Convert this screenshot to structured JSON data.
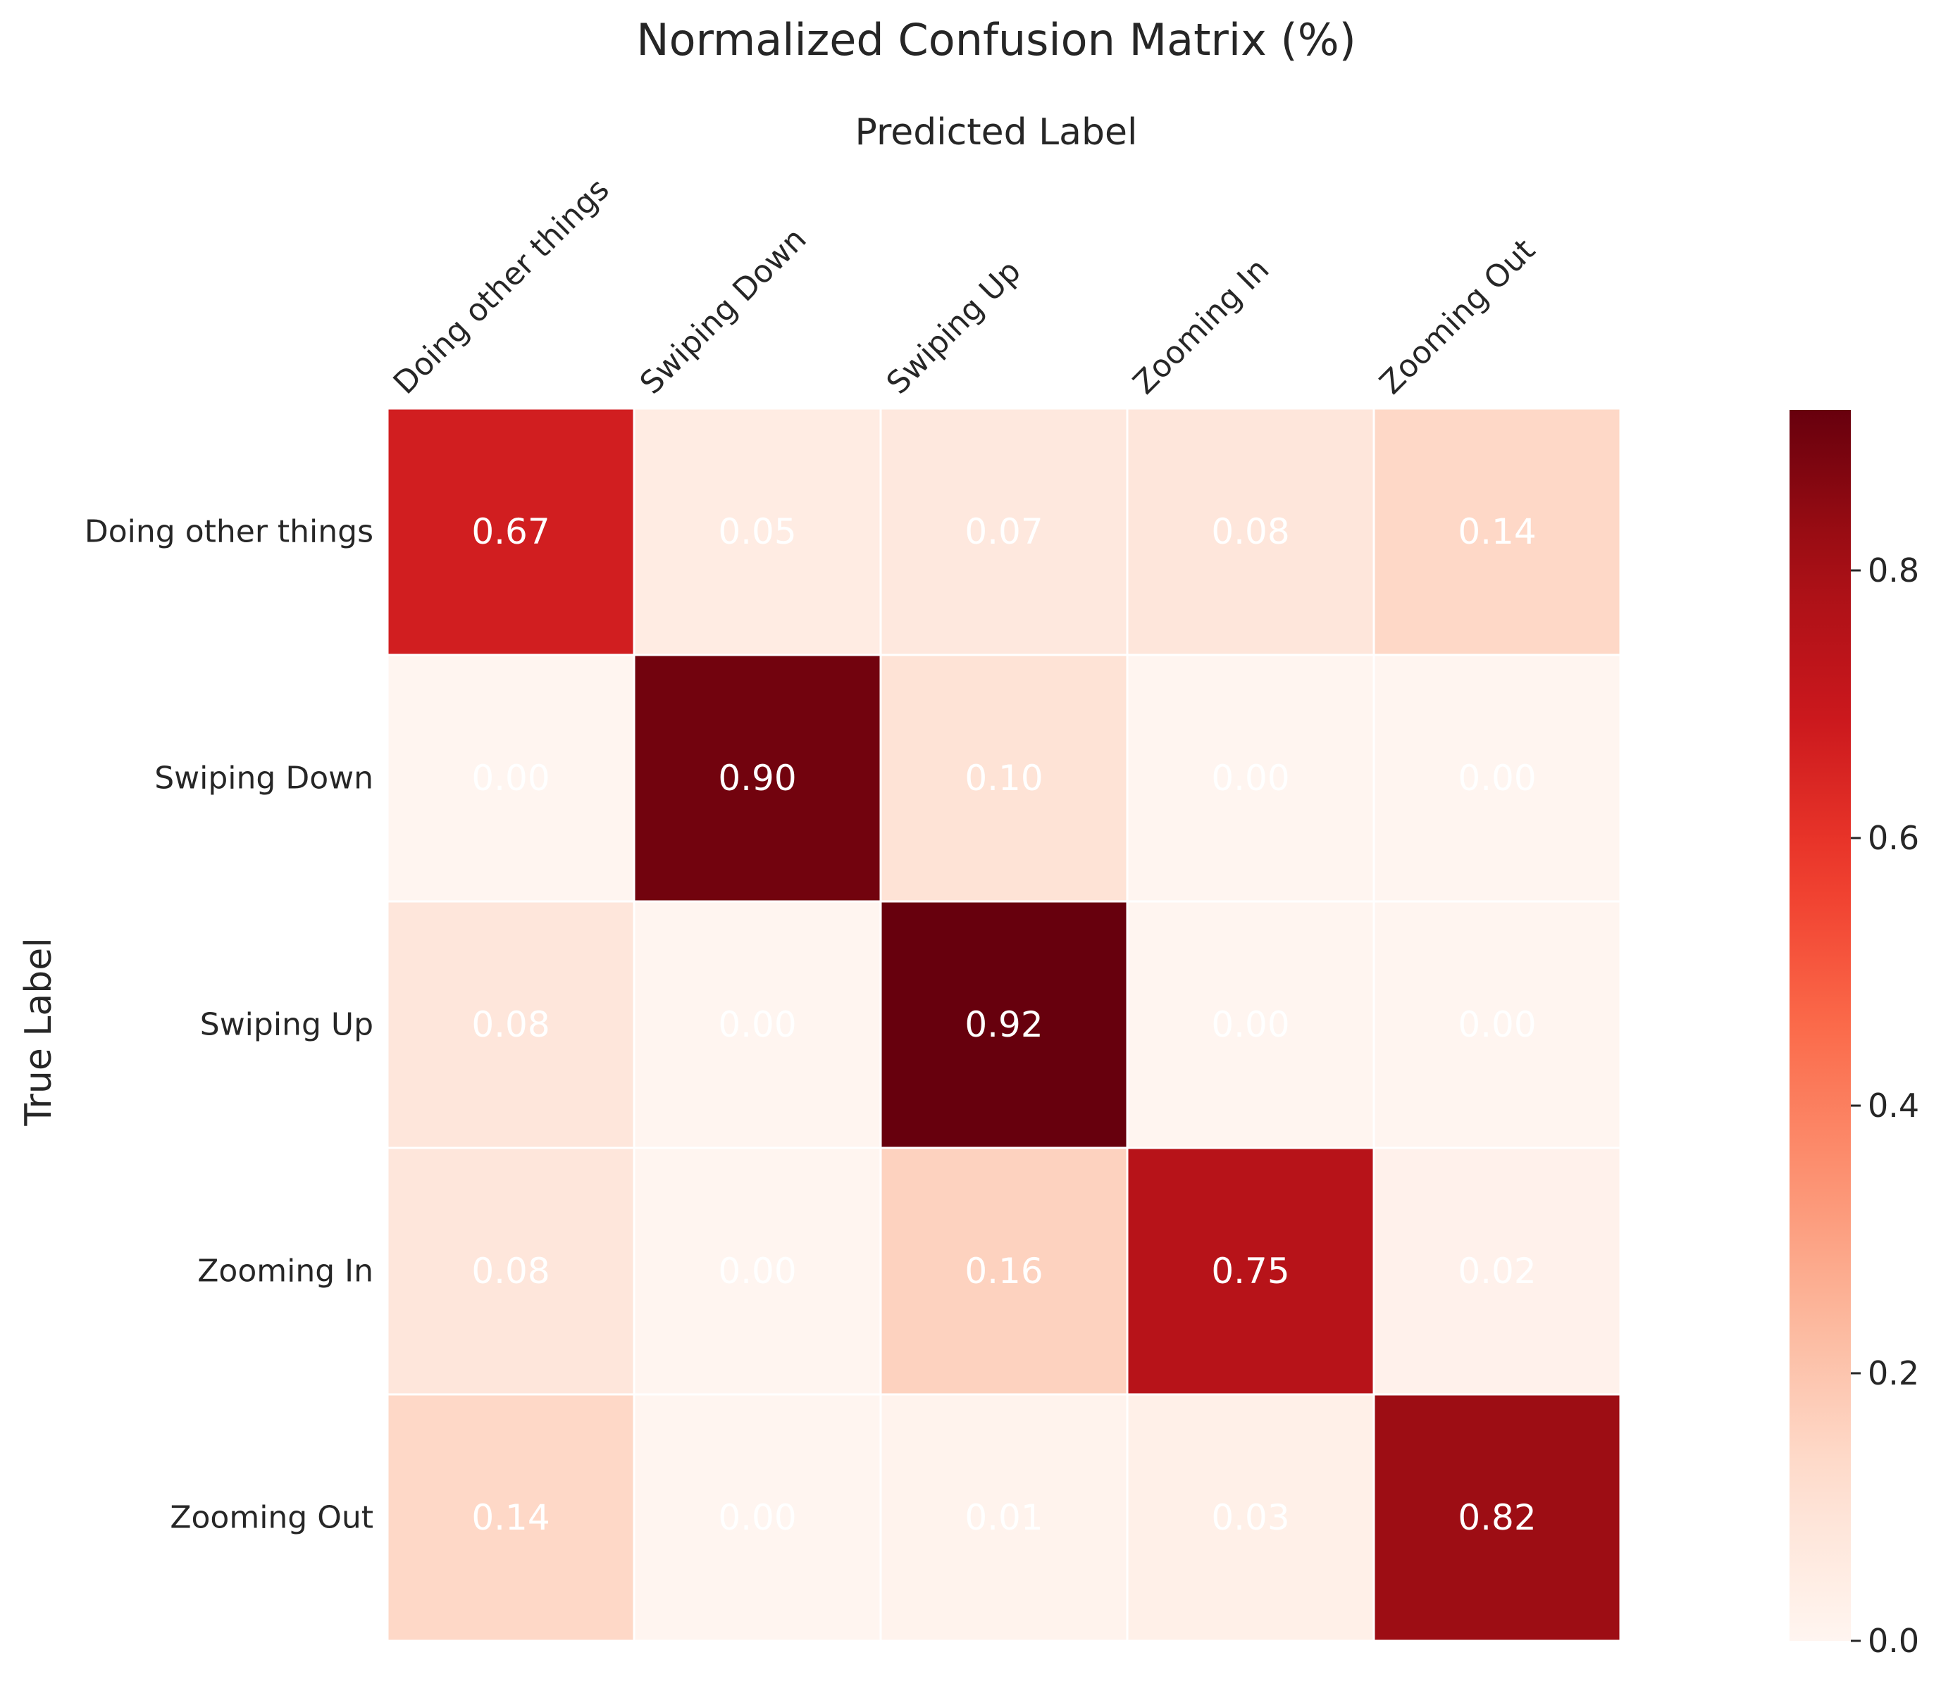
{
  "chart_data": {
    "type": "heatmap",
    "title": "Normalized Confusion Matrix (%)",
    "xlabel": "Predicted Label",
    "ylabel": "True Label",
    "x_categories": [
      "Doing other things",
      "Swiping Down",
      "Swiping Up",
      "Zooming In",
      "Zooming Out"
    ],
    "y_categories": [
      "Doing other things",
      "Swiping Down",
      "Swiping Up",
      "Zooming In",
      "Zooming Out"
    ],
    "values": [
      [
        0.67,
        0.05,
        0.07,
        0.08,
        0.14
      ],
      [
        0.0,
        0.9,
        0.1,
        0.0,
        0.0
      ],
      [
        0.08,
        0.0,
        0.92,
        0.0,
        0.0
      ],
      [
        0.08,
        0.0,
        0.16,
        0.75,
        0.02
      ],
      [
        0.14,
        0.0,
        0.01,
        0.03,
        0.82
      ]
    ],
    "value_labels": [
      [
        "0.67",
        "0.05",
        "0.07",
        "0.08",
        "0.14"
      ],
      [
        "0.00",
        "0.90",
        "0.10",
        "0.00",
        "0.00"
      ],
      [
        "0.08",
        "0.00",
        "0.92",
        "0.00",
        "0.00"
      ],
      [
        "0.08",
        "0.00",
        "0.16",
        "0.75",
        "0.02"
      ],
      [
        "0.14",
        "0.00",
        "0.01",
        "0.03",
        "0.82"
      ]
    ],
    "colormap": "Reds",
    "color_range": [
      0.0,
      0.92
    ],
    "colorbar": {
      "ticks": [
        0.0,
        0.2,
        0.4,
        0.6,
        0.8
      ],
      "tick_labels": [
        "0.0",
        "0.2",
        "0.4",
        "0.6",
        "0.8"
      ]
    },
    "x_ticks_position": "top",
    "cell_text_color": "#ffffff",
    "grid_line_color": "#ffffff"
  }
}
